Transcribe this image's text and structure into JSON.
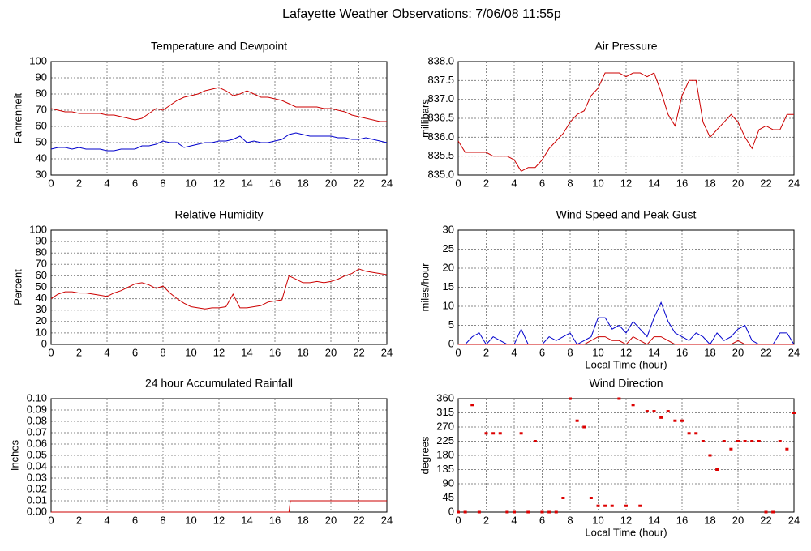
{
  "title": "Lafayette Weather Observations: 7/06/08 11:55p",
  "chart_data": [
    {
      "type": "line",
      "title": "Temperature and Dewpoint",
      "ylabel": "Fahrenheit",
      "xlim": [
        0,
        24
      ],
      "xticks": [
        0,
        2,
        4,
        6,
        8,
        10,
        12,
        14,
        16,
        18,
        20,
        22,
        24
      ],
      "ylim": [
        30,
        100
      ],
      "yticks": [
        30,
        40,
        50,
        60,
        70,
        80,
        90,
        100
      ],
      "grid": true,
      "x": [
        0,
        0.5,
        1,
        1.5,
        2,
        2.5,
        3,
        3.5,
        4,
        4.5,
        5,
        5.5,
        6,
        6.5,
        7,
        7.5,
        8,
        8.5,
        9,
        9.5,
        10,
        10.5,
        11,
        11.5,
        12,
        12.5,
        13,
        13.5,
        14,
        14.5,
        15,
        15.5,
        16,
        16.5,
        17,
        17.5,
        18,
        18.5,
        19,
        19.5,
        20,
        20.5,
        21,
        21.5,
        22,
        22.5,
        23,
        23.5,
        24
      ],
      "series": [
        {
          "color": "#cc0000",
          "values": [
            71,
            70,
            69,
            69,
            68,
            68,
            68,
            68,
            67,
            67,
            66,
            65,
            64,
            65,
            68,
            71,
            70,
            73,
            76,
            78,
            79,
            80,
            82,
            83,
            84,
            82,
            79,
            80,
            82,
            80,
            78,
            78,
            77,
            76,
            74,
            72,
            72,
            72,
            72,
            71,
            71,
            70,
            69,
            67,
            66,
            65,
            64,
            63,
            63
          ]
        },
        {
          "color": "#0000cc",
          "values": [
            46,
            47,
            47,
            46,
            47,
            46,
            46,
            46,
            45,
            45,
            46,
            46,
            46,
            48,
            48,
            49,
            51,
            50,
            50,
            47,
            48,
            49,
            50,
            50,
            51,
            51,
            52,
            54,
            50,
            51,
            50,
            50,
            51,
            52,
            55,
            56,
            55,
            54,
            54,
            54,
            54,
            53,
            53,
            52,
            52,
            53,
            52,
            51,
            50
          ]
        }
      ]
    },
    {
      "type": "line",
      "title": "Air Pressure",
      "ylabel": "millibars",
      "xlim": [
        0,
        24
      ],
      "xticks": [
        0,
        2,
        4,
        6,
        8,
        10,
        12,
        14,
        16,
        18,
        20,
        22,
        24
      ],
      "ylim": [
        835,
        838
      ],
      "yticks": [
        {
          "value": 835,
          "label": "835.0"
        },
        {
          "value": 835.5,
          "label": "835.5"
        },
        {
          "value": 836,
          "label": "836.0"
        },
        {
          "value": 836.5,
          "label": "836.5"
        },
        {
          "value": 837,
          "label": "837.0"
        },
        {
          "value": 837.5,
          "label": "837.5"
        },
        {
          "value": 838,
          "label": "838.0"
        }
      ],
      "grid": true,
      "x": [
        0,
        0.5,
        1,
        1.5,
        2,
        2.5,
        3,
        3.5,
        4,
        4.5,
        5,
        5.5,
        6,
        6.5,
        7,
        7.5,
        8,
        8.5,
        9,
        9.5,
        10,
        10.5,
        11,
        11.5,
        12,
        12.5,
        13,
        13.5,
        14,
        14.5,
        15,
        15.5,
        16,
        16.5,
        17,
        17.5,
        18,
        18.5,
        19,
        19.5,
        20,
        20.5,
        21,
        21.5,
        22,
        22.5,
        23,
        23.5,
        24
      ],
      "series": [
        {
          "color": "#cc0000",
          "values": [
            835.9,
            835.6,
            835.6,
            835.6,
            835.6,
            835.5,
            835.5,
            835.5,
            835.4,
            835.1,
            835.2,
            835.2,
            835.4,
            835.7,
            835.9,
            836.1,
            836.4,
            836.6,
            836.7,
            837.1,
            837.3,
            837.7,
            837.7,
            837.7,
            837.6,
            837.7,
            837.7,
            837.6,
            837.7,
            837.2,
            836.6,
            836.3,
            837.1,
            837.5,
            837.5,
            836.4,
            836.0,
            836.2,
            836.4,
            836.6,
            836.4,
            836.0,
            835.7,
            836.2,
            836.3,
            836.2,
            836.2,
            836.6,
            836.6
          ]
        }
      ]
    },
    {
      "type": "line",
      "title": "Relative Humidity",
      "ylabel": "Percent",
      "xlim": [
        0,
        24
      ],
      "xticks": [
        0,
        2,
        4,
        6,
        8,
        10,
        12,
        14,
        16,
        18,
        20,
        22,
        24
      ],
      "ylim": [
        0,
        100
      ],
      "yticks": [
        0,
        10,
        20,
        30,
        40,
        50,
        60,
        70,
        80,
        90,
        100
      ],
      "grid": true,
      "x": [
        0,
        0.5,
        1,
        1.5,
        2,
        2.5,
        3,
        3.5,
        4,
        4.5,
        5,
        5.5,
        6,
        6.5,
        7,
        7.5,
        8,
        8.5,
        9,
        9.5,
        10,
        10.5,
        11,
        11.5,
        12,
        12.5,
        13,
        13.5,
        14,
        14.5,
        15,
        15.5,
        16,
        16.5,
        17,
        17.5,
        18,
        18.5,
        19,
        19.5,
        20,
        20.5,
        21,
        21.5,
        22,
        22.5,
        23,
        23.5,
        24
      ],
      "series": [
        {
          "color": "#cc0000",
          "values": [
            40,
            44,
            46,
            46,
            45,
            45,
            44,
            43,
            42,
            45,
            47,
            50,
            53,
            54,
            52,
            49,
            51,
            45,
            40,
            36,
            33,
            32,
            31,
            32,
            32,
            33,
            44,
            32,
            32,
            33,
            34,
            37,
            38,
            39,
            60,
            57,
            54,
            54,
            55,
            54,
            55,
            57,
            60,
            62,
            66,
            64,
            63,
            62,
            61
          ]
        }
      ]
    },
    {
      "type": "line",
      "title": "Wind Speed and Peak Gust",
      "ylabel": "miles/hour",
      "xlabel": "Local Time (hour)",
      "xlim": [
        0,
        24
      ],
      "xticks": [
        0,
        2,
        4,
        6,
        8,
        10,
        12,
        14,
        16,
        18,
        20,
        22,
        24
      ],
      "ylim": [
        0,
        30
      ],
      "yticks": [
        0,
        5,
        10,
        15,
        20,
        25,
        30
      ],
      "grid": true,
      "x": [
        0,
        0.5,
        1,
        1.5,
        2,
        2.5,
        3,
        3.5,
        4,
        4.5,
        5,
        5.5,
        6,
        6.5,
        7,
        7.5,
        8,
        8.5,
        9,
        9.5,
        10,
        10.5,
        11,
        11.5,
        12,
        12.5,
        13,
        13.5,
        14,
        14.5,
        15,
        15.5,
        16,
        16.5,
        17,
        17.5,
        18,
        18.5,
        19,
        19.5,
        20,
        20.5,
        21,
        21.5,
        22,
        22.5,
        23,
        23.5,
        24
      ],
      "series": [
        {
          "color": "#0000cc",
          "values": [
            0,
            0,
            2,
            3,
            0,
            2,
            1,
            0,
            0,
            4,
            0,
            0,
            0,
            2,
            1,
            2,
            3,
            0,
            1,
            2,
            7,
            7,
            4,
            5,
            3,
            6,
            4,
            2,
            7,
            11,
            6,
            3,
            2,
            1,
            3,
            2,
            0,
            3,
            1,
            2,
            4,
            5,
            1,
            0,
            0,
            0,
            3,
            3,
            0
          ]
        },
        {
          "color": "#cc0000",
          "values": [
            0,
            0,
            0,
            0,
            0,
            0,
            0,
            0,
            0,
            0,
            0,
            0,
            0,
            0,
            0,
            0,
            0,
            0,
            0,
            1,
            2,
            2,
            1,
            1,
            0,
            2,
            1,
            0,
            2,
            2,
            1,
            0,
            0,
            0,
            0,
            0,
            0,
            0,
            0,
            0,
            1,
            0,
            0,
            0,
            0,
            0,
            0,
            0,
            0
          ]
        }
      ]
    },
    {
      "type": "line",
      "title": "24 hour Accumulated Rainfall",
      "ylabel": "Inches",
      "xlim": [
        0,
        24
      ],
      "xticks": [
        0,
        2,
        4,
        6,
        8,
        10,
        12,
        14,
        16,
        18,
        20,
        22,
        24
      ],
      "ylim": [
        0,
        0.1
      ],
      "yticks": [
        {
          "value": 0,
          "label": "0.00"
        },
        {
          "value": 0.01,
          "label": "0.01"
        },
        {
          "value": 0.02,
          "label": "0.02"
        },
        {
          "value": 0.03,
          "label": "0.03"
        },
        {
          "value": 0.04,
          "label": "0.04"
        },
        {
          "value": 0.05,
          "label": "0.05"
        },
        {
          "value": 0.06,
          "label": "0.06"
        },
        {
          "value": 0.07,
          "label": "0.07"
        },
        {
          "value": 0.08,
          "label": "0.08"
        },
        {
          "value": 0.09,
          "label": "0.09"
        },
        {
          "value": 0.1,
          "label": "0.10"
        }
      ],
      "grid": true,
      "x": [
        0,
        17,
        17.1,
        24
      ],
      "series": [
        {
          "color": "#cc0000",
          "values": [
            0,
            0,
            0.01,
            0.01
          ]
        }
      ]
    },
    {
      "type": "scatter",
      "title": "Wind Direction",
      "ylabel": "degrees",
      "xlabel": "Local Time (hour)",
      "xlim": [
        0,
        24
      ],
      "xticks": [
        0,
        2,
        4,
        6,
        8,
        10,
        12,
        14,
        16,
        18,
        20,
        22,
        24
      ],
      "ylim": [
        0,
        360
      ],
      "yticks": [
        0,
        45,
        90,
        135,
        180,
        225,
        270,
        315,
        360
      ],
      "grid": true,
      "x": [
        0,
        0.5,
        1,
        1.5,
        2,
        2.5,
        3,
        3.5,
        4,
        4.5,
        5,
        5.5,
        6,
        6.5,
        7,
        7.5,
        8,
        8.5,
        9,
        9.5,
        10,
        10.5,
        11,
        11.5,
        12,
        12.5,
        13,
        13.5,
        14,
        14.5,
        15,
        15.5,
        16,
        16.5,
        17,
        17.5,
        18,
        18.5,
        19,
        19.5,
        20,
        20.5,
        21,
        21.5,
        22,
        22.5,
        23,
        23.5,
        24
      ],
      "series": [
        {
          "color": "#dd0000",
          "values": [
            0,
            0,
            340,
            0,
            250,
            250,
            250,
            0,
            0,
            250,
            0,
            225,
            0,
            0,
            0,
            45,
            360,
            290,
            270,
            45,
            20,
            20,
            20,
            360,
            20,
            340,
            20,
            320,
            320,
            300,
            320,
            290,
            290,
            250,
            250,
            225,
            180,
            135,
            225,
            200,
            225,
            225,
            225,
            225,
            0,
            0,
            225,
            200,
            315
          ]
        }
      ]
    }
  ]
}
